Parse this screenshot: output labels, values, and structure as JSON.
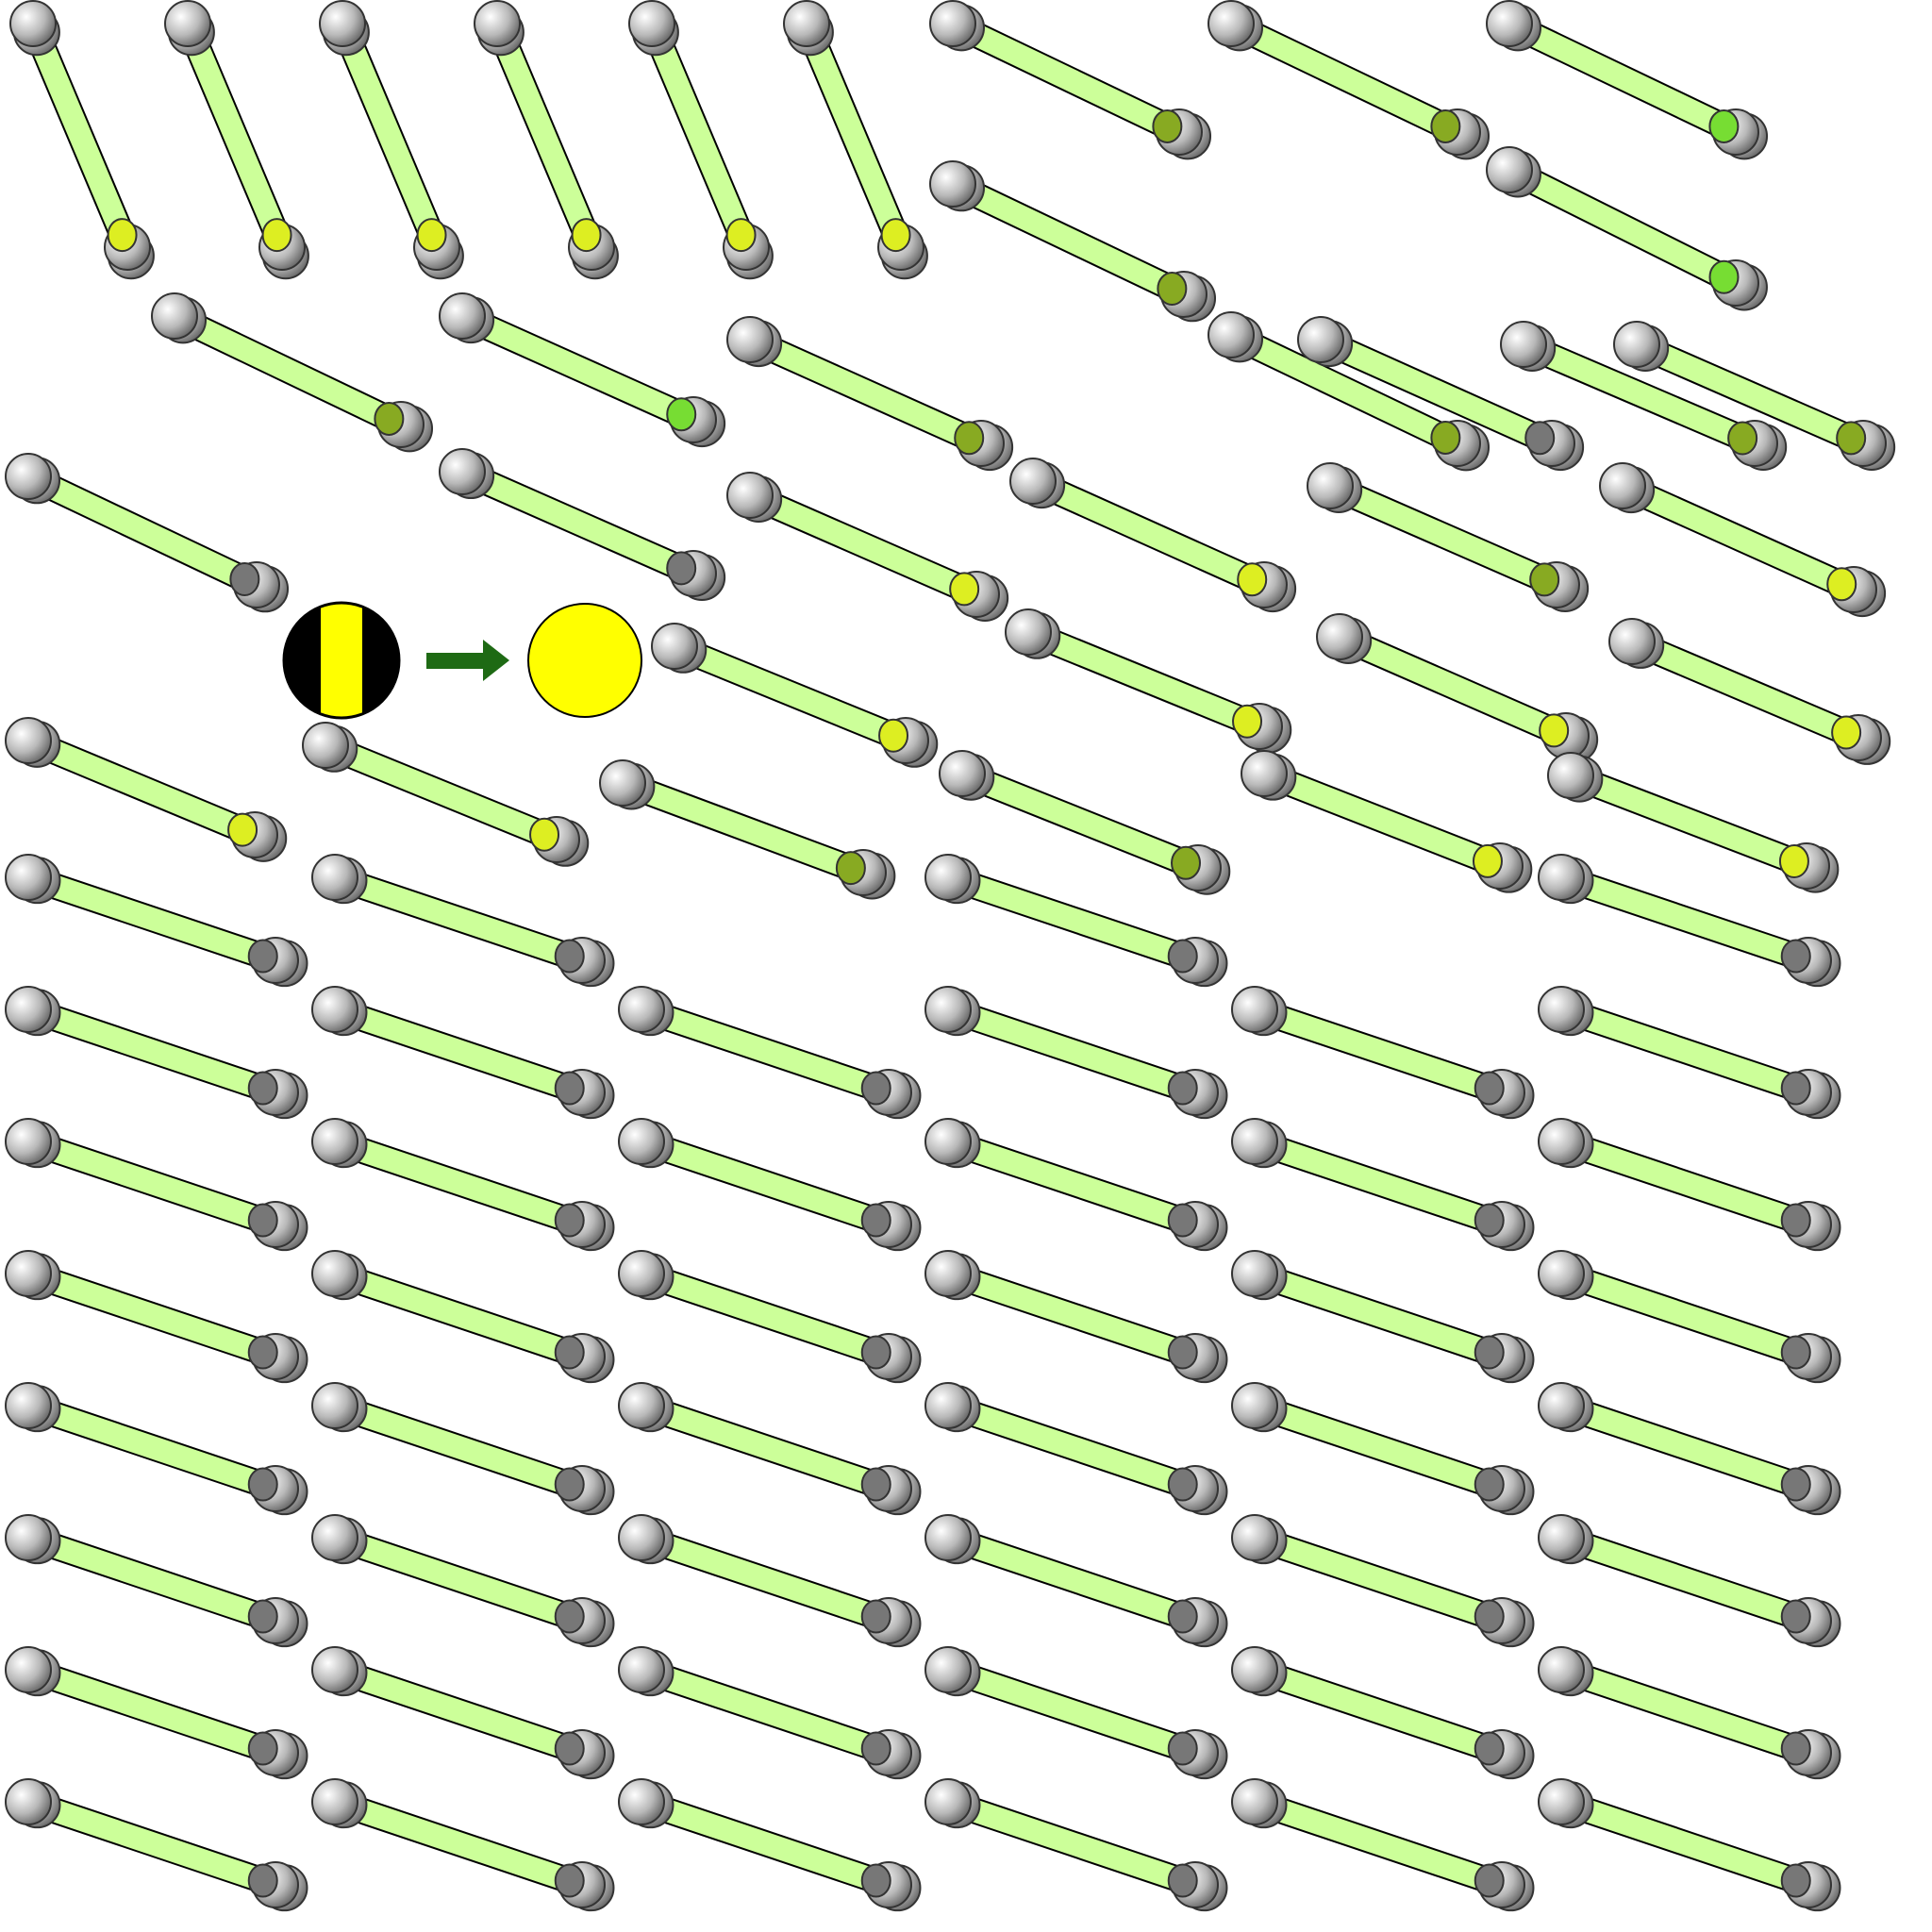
{
  "legend": {
    "from_marker": {
      "icon": "black-yellow-striped-disc-icon",
      "colors": [
        "#000000",
        "#ffff00"
      ]
    },
    "arrow": {
      "icon": "right-arrow-icon",
      "color": "#1e6a14"
    },
    "to_marker": {
      "icon": "yellow-disc-icon",
      "color": "#ffff00"
    }
  },
  "colors": {
    "tube_fill": "#ccff99",
    "tube_outline": "#000000",
    "cap_highlight": "#ffffff",
    "cap_mid": "#b8b8b8",
    "cap_shadow": "#5a5a5a",
    "end_yellow": "#ddee22",
    "end_green": "#77dd33",
    "end_olive": "#88aa22",
    "end_gray": "#777777",
    "background": "#ffffff"
  },
  "rods": {
    "row_1_steep": {
      "count": 6,
      "end_color": "yellow"
    },
    "top_right_pairs": {
      "count": 6,
      "end_colors": [
        "olive",
        "olive",
        "green",
        "olive",
        "green",
        "olive"
      ]
    },
    "upper_rows": {
      "count": 22,
      "end_colors": [
        "olive",
        "green",
        "olive",
        "gray",
        "gray",
        "olive",
        "yellow",
        "yellow",
        "olive",
        "yellow",
        "yellow",
        "yellow",
        "yellow",
        "yellow",
        "yellow",
        "yellow",
        "olive",
        "olive",
        "yellow",
        "yellow",
        "olive",
        "gray"
      ]
    },
    "lower_grid": {
      "count": 50,
      "end_color": "gray"
    }
  }
}
